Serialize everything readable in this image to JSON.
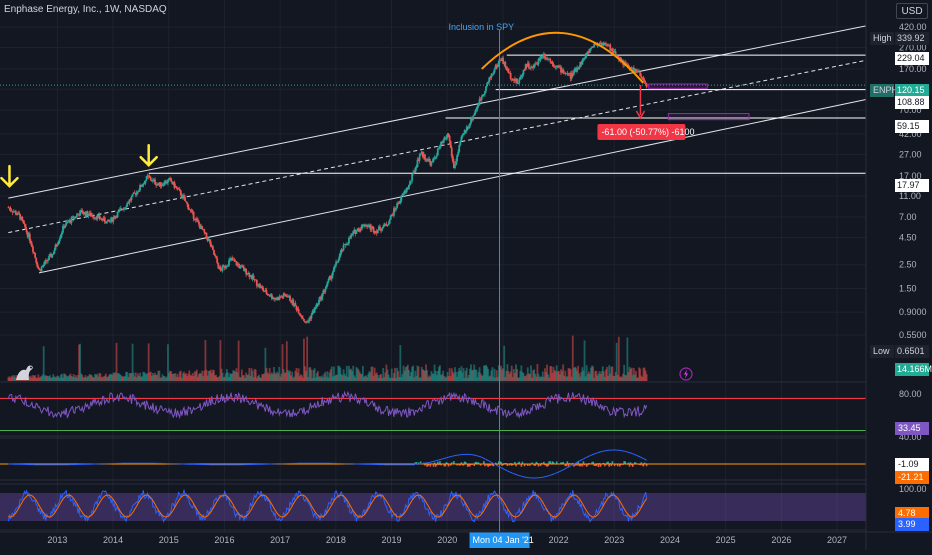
{
  "header": {
    "symbol_line": "Enphase Energy, Inc., 1W, NASDAQ",
    "currency": "USD"
  },
  "annotations": {
    "event_label": "Inclusion in SPY",
    "measure_label": "-61.00 (-50.77%) -6100"
  },
  "colors": {
    "bg": "#131722",
    "grid": "#1e222d",
    "text": "#b2b5be",
    "up": "#26a69a",
    "down": "#ef5350",
    "accent_blue": "#2196f3",
    "arc": "#ff9800",
    "arrow": "#ffeb3b",
    "rsi": "#7e57c2",
    "macd": "#2962ff",
    "signal": "#ff6d00",
    "stoch_k": "#2962ff",
    "stoch_d": "#ff6d00"
  },
  "price_axis": {
    "ticks": [
      "420.00",
      "270.00",
      "170.00",
      "110.00",
      "70.00",
      "42.00",
      "27.00",
      "17.00",
      "11.00",
      "7.00",
      "4.50",
      "2.50",
      "1.50",
      "0.9000",
      "0.5500"
    ],
    "badges": [
      {
        "label": "High",
        "value": "339.92",
        "style": "dark"
      },
      {
        "label": "",
        "value": "229.04",
        "style": "white"
      },
      {
        "label": "ENPH",
        "value": "120.15",
        "style": "teal"
      },
      {
        "label": "",
        "value": "108.88",
        "style": "white"
      },
      {
        "label": "",
        "value": "59.15",
        "style": "white"
      },
      {
        "label": "",
        "value": "17.97",
        "style": "white"
      },
      {
        "label": "Low",
        "value": "0.6501",
        "style": "dark"
      },
      {
        "label": "",
        "value": "14.166M",
        "style": "teal"
      }
    ]
  },
  "indicator_axis": {
    "rsi_ticks": [
      "80.00",
      "40.00"
    ],
    "rsi_value": "33.45",
    "macd_values": [
      "-1.09",
      "-21.21"
    ],
    "stoch_ticks": [
      "100.00"
    ],
    "stoch_values": [
      "4.78",
      "3.99"
    ]
  },
  "time_axis": {
    "labels": [
      "2013",
      "2014",
      "2015",
      "2016",
      "2017",
      "2018",
      "2019",
      "2020",
      "2021",
      "2022",
      "2023",
      "2024",
      "2025",
      "2026",
      "2027"
    ],
    "crosshair_label": "Mon 04 Jan '21"
  },
  "chart_data": {
    "type": "candlestick",
    "title": "Enphase Energy, Inc., 1W, NASDAQ",
    "scale": "log",
    "ylim": [
      0.5,
      420
    ],
    "xlim": [
      2012.05,
      2027.6
    ],
    "path": [
      [
        2012.2,
        8.6
      ],
      [
        2012.4,
        7.2
      ],
      [
        2012.6,
        4.2
      ],
      [
        2012.75,
        2.2
      ],
      [
        2013.0,
        3.2
      ],
      [
        2013.2,
        5.8
      ],
      [
        2013.5,
        7.8
      ],
      [
        2013.8,
        7.0
      ],
      [
        2014.0,
        6.2
      ],
      [
        2014.3,
        9.0
      ],
      [
        2014.5,
        12.0
      ],
      [
        2014.7,
        16.5
      ],
      [
        2014.9,
        14.0
      ],
      [
        2015.1,
        15.5
      ],
      [
        2015.3,
        11.5
      ],
      [
        2015.5,
        7.5
      ],
      [
        2015.8,
        4.2
      ],
      [
        2016.0,
        2.2
      ],
      [
        2016.2,
        2.8
      ],
      [
        2016.5,
        2.1
      ],
      [
        2016.8,
        1.4
      ],
      [
        2017.0,
        1.2
      ],
      [
        2017.2,
        1.3
      ],
      [
        2017.4,
        0.95
      ],
      [
        2017.55,
        0.7
      ],
      [
        2017.8,
        1.2
      ],
      [
        2018.0,
        2.0
      ],
      [
        2018.2,
        3.5
      ],
      [
        2018.4,
        5.0
      ],
      [
        2018.6,
        6.0
      ],
      [
        2018.8,
        5.2
      ],
      [
        2019.0,
        6.0
      ],
      [
        2019.2,
        9.5
      ],
      [
        2019.4,
        14.0
      ],
      [
        2019.6,
        28.0
      ],
      [
        2019.8,
        22.0
      ],
      [
        2019.95,
        32.0
      ],
      [
        2020.1,
        42.0
      ],
      [
        2020.2,
        20.0
      ],
      [
        2020.35,
        40.0
      ],
      [
        2020.5,
        55.0
      ],
      [
        2020.7,
        95.0
      ],
      [
        2020.9,
        160.0
      ],
      [
        2021.05,
        215.0
      ],
      [
        2021.2,
        150.0
      ],
      [
        2021.35,
        125.0
      ],
      [
        2021.5,
        190.0
      ],
      [
        2021.6,
        170.0
      ],
      [
        2021.8,
        235.0
      ],
      [
        2021.95,
        200.0
      ],
      [
        2022.1,
        170.0
      ],
      [
        2022.3,
        145.0
      ],
      [
        2022.5,
        200.0
      ],
      [
        2022.7,
        285.0
      ],
      [
        2022.85,
        300.0
      ],
      [
        2023.0,
        270.0
      ],
      [
        2023.15,
        220.0
      ],
      [
        2023.3,
        180.0
      ],
      [
        2023.5,
        160.0
      ],
      [
        2023.6,
        130.0
      ],
      [
        2023.68,
        120.15
      ]
    ],
    "channel": {
      "upper": [
        [
          2012.2,
          10.5
        ],
        [
          2027.6,
          430
        ]
      ],
      "mid": [
        [
          2012.2,
          5.0
        ],
        [
          2027.6,
          205
        ]
      ],
      "lower": [
        [
          2012.75,
          2.1
        ],
        [
          2027.6,
          88
        ]
      ]
    },
    "levels": [
      229.04,
      108.88,
      59.15,
      17.97
    ],
    "last_price": 120.15,
    "high": 339.92,
    "low": 0.6501,
    "event_x": 2021.02,
    "measure": {
      "x": 2023.55,
      "from": 120.15,
      "to": 59.15,
      "change": -61.0,
      "change_pct": -50.77
    },
    "projection_boxes": [
      {
        "x0": 2023.7,
        "x1": 2024.75,
        "lo": 112,
        "hi": 123
      },
      {
        "x0": 2024.05,
        "x1": 2025.5,
        "lo": 57,
        "hi": 65
      }
    ],
    "arc": {
      "x0": 2020.7,
      "x1": 2023.6,
      "base": 170,
      "peak": 360
    },
    "markers": [
      {
        "x": 2012.22,
        "y": 10.5
      },
      {
        "x": 2014.72,
        "y": 16.5
      }
    ],
    "volume": {
      "last": 14.166,
      "unit": "M"
    },
    "rsi": {
      "last": 33.45,
      "upper_band": 70,
      "lower_band": 30
    },
    "macd": {
      "macd_last": -21.21,
      "hist_last": -1.09
    },
    "stoch": {
      "k_last": 4.78,
      "d_last": 3.99,
      "upper": 80,
      "lower": 20
    }
  }
}
